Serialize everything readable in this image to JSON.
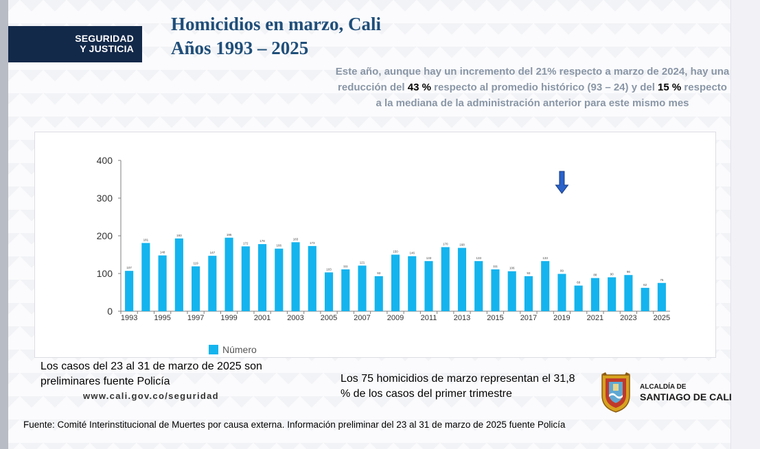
{
  "brand": {
    "line1": "SEGURIDAD",
    "line2": "Y JUSTICIA"
  },
  "title": {
    "line1": "Homicidios en marzo, Cali",
    "line2": "Años 1993 – 2025"
  },
  "summary": {
    "part1": "Este año, aunque hay un incremento del 21% respecto a marzo de 2024, hay una reducción del ",
    "highlight1": "43 %",
    "part2": " respecto al promedio histórico (93 – 24) y del ",
    "highlight2": "15 %",
    "part3": " respecto a la mediana de la administración anterior para este mismo mes"
  },
  "colors": {
    "bar": "#14b4ee",
    "arrow": "#2a62c9",
    "title": "#1f4e79",
    "brand_bg": "#13294a"
  },
  "chart_data": {
    "type": "bar",
    "categories": [
      "1993",
      "1994",
      "1995",
      "1996",
      "1997",
      "1998",
      "1999",
      "2000",
      "2001",
      "2002",
      "2003",
      "2004",
      "2005",
      "2006",
      "2007",
      "2008",
      "2009",
      "2010",
      "2011",
      "2012",
      "2013",
      "2014",
      "2015",
      "2016",
      "2017",
      "2018",
      "2019",
      "2020",
      "2021",
      "2022",
      "2023",
      "2024",
      "2025"
    ],
    "tick_labels": [
      "1993",
      "1995",
      "1997",
      "1999",
      "2001",
      "2003",
      "2005",
      "2007",
      "2009",
      "2011",
      "2013",
      "2015",
      "2017",
      "2019",
      "2021",
      "2023",
      "2025"
    ],
    "series": [
      {
        "name": "Número",
        "values": [
          107,
          181,
          148,
          193,
          119,
          147,
          195,
          172,
          178,
          166,
          183,
          173,
          103,
          111,
          121,
          93,
          150,
          146,
          133,
          170,
          168,
          133,
          111,
          106,
          93,
          133,
          99,
          68,
          88,
          90,
          96,
          62,
          75
        ]
      }
    ],
    "data_labels": [
      "107",
      "181",
      "148",
      "193",
      "119",
      "147",
      "195",
      "172",
      "178",
      "166",
      "183",
      "173",
      "103",
      "111",
      "121",
      "93",
      "150",
      "146",
      "133",
      "170",
      "168",
      "133",
      "111",
      "106",
      "93",
      "133",
      "99",
      "68",
      "88",
      "90",
      "96",
      "62",
      "75"
    ],
    "y_ticks": [
      "0",
      "100",
      "200",
      "300",
      "400"
    ],
    "ylim": [
      0,
      400
    ],
    "grid": false,
    "legend": "bottom-left",
    "annotation": "down-arrow-over-2019"
  },
  "notes": {
    "preliminary": "Los casos del 23 al 31 de marzo de 2025 son preliminares fuente Policía",
    "url": "www.cali.gov.co/seguridad",
    "share": "Los 75 homicidios de marzo representan el 31,8 % de los casos del primer trimestre"
  },
  "logo": {
    "line1": "ALCALDÍA DE",
    "line2": "SANTIAGO DE CALI"
  },
  "source": "Fuente: Comité Interinstitucional de Muertes por causa externa. Información preliminar del 23 al 31 de marzo de 2025 fuente Policía"
}
